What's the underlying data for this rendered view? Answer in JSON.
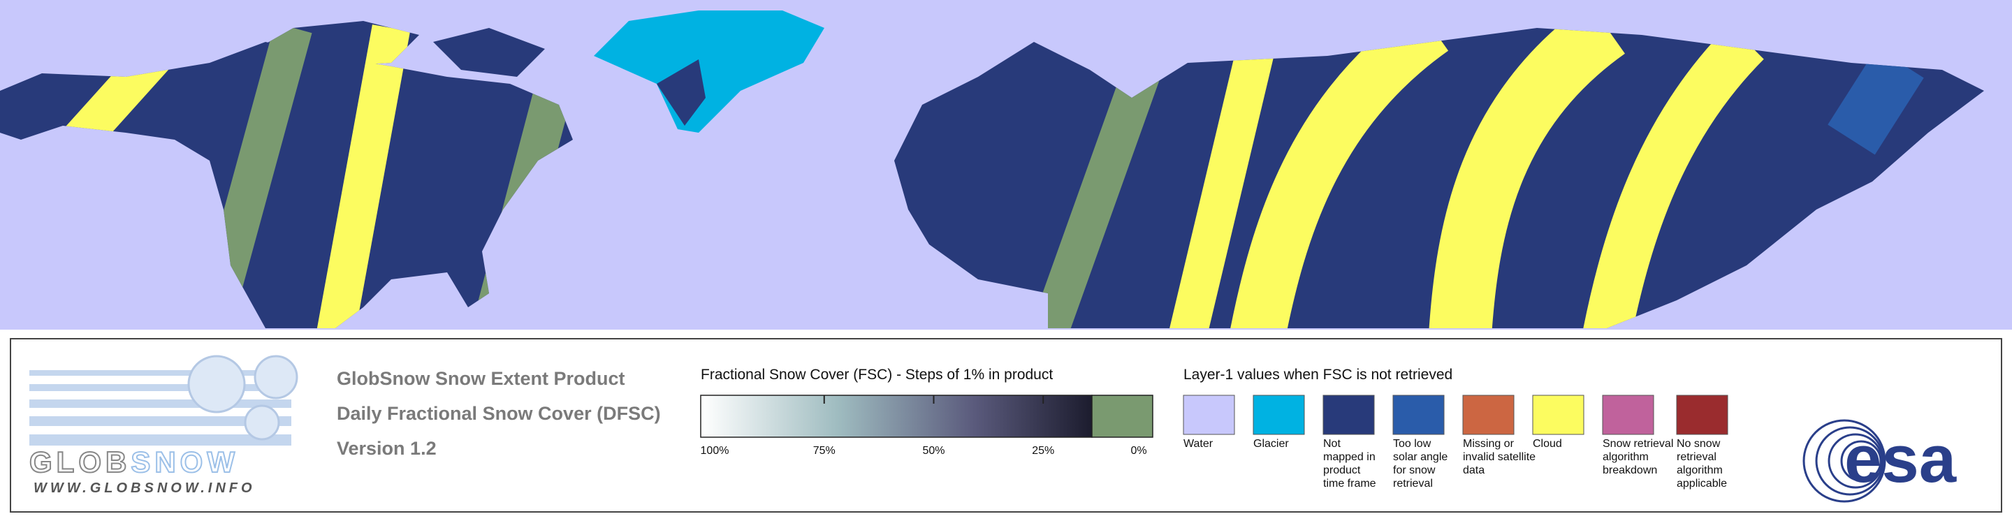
{
  "legend": {
    "logo": {
      "name": [
        "GLOB",
        "SNOW"
      ],
      "url": "WWW.GLOBSNOW.INFO"
    },
    "product": [
      "GlobSnow Snow Extent Product",
      "Daily Fractional Snow Cover (DFSC)",
      "Version 1.2"
    ],
    "fsc": {
      "title": "Fractional Snow Cover (FSC) - Steps of 1% in product",
      "labels": [
        "100%",
        "75%",
        "50%",
        "25%",
        "0%"
      ]
    },
    "layer1": {
      "title": "Layer-1 values when FSC is not retrieved",
      "items": [
        {
          "label": [
            "Water"
          ],
          "color": "#c8c8fc"
        },
        {
          "label": [
            "Glacier"
          ],
          "color": "#00b2e2"
        },
        {
          "label": [
            "Not",
            "mapped in",
            "product",
            "time frame"
          ],
          "color": "#283a7a"
        },
        {
          "label": [
            "Too low",
            "solar angle",
            "for snow",
            "retrieval"
          ],
          "color": "#2a5caa"
        },
        {
          "label": [
            "Missing or",
            "invalid satellite",
            "data"
          ],
          "color": "#cc6642"
        },
        {
          "label": [
            "Cloud"
          ],
          "color": "#fcfc60"
        },
        {
          "label": [
            "Snow retrieval",
            "algorithm",
            "breakdown"
          ],
          "color": "#c0629c"
        },
        {
          "label": [
            "No snow",
            "retrieval",
            "algorithm",
            "applicable"
          ],
          "color": "#9a2c2e"
        }
      ]
    },
    "agency": "esa"
  }
}
